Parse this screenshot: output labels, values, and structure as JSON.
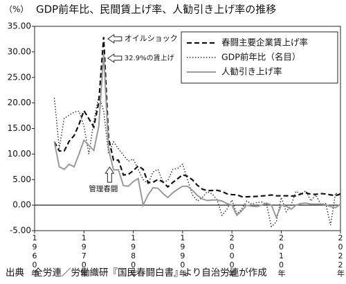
{
  "chart_data": {
    "type": "line",
    "title": "GDP前年比、民間賃上げ率、人勧引き上げ率の推移",
    "y_unit": "（%）",
    "source": "出典　全労連／労働織研『国民春闘白書』より自治労連が作成",
    "annotations": [
      "オイルショック",
      "32.9%の賃上げ",
      "管理春闘"
    ],
    "xlim": [
      1960,
      2022
    ],
    "xticks": [
      {
        "value": 1960,
        "label": "1960年"
      },
      {
        "value": 1970,
        "label": "1970年"
      },
      {
        "value": 1980,
        "label": "1980年"
      },
      {
        "value": 1990,
        "label": "1990年"
      },
      {
        "value": 2000,
        "label": "2000年"
      },
      {
        "value": 2010,
        "label": "2010年"
      },
      {
        "value": 2022,
        "label": "2022年"
      }
    ],
    "ylim": [
      -5,
      35
    ],
    "yticks": [
      {
        "value": -5,
        "label": "-5.00"
      },
      {
        "value": 0,
        "label": "0.00"
      },
      {
        "value": 5,
        "label": "5.00"
      },
      {
        "value": 10,
        "label": "10.00"
      },
      {
        "value": 15,
        "label": "15.00"
      },
      {
        "value": 20,
        "label": "20.00"
      },
      {
        "value": 25,
        "label": "25.00"
      },
      {
        "value": 30,
        "label": "30.00"
      },
      {
        "value": 35,
        "label": "35.00"
      }
    ],
    "x": [
      1964,
      1965,
      1966,
      1967,
      1968,
      1969,
      1970,
      1971,
      1972,
      1973,
      1974,
      1975,
      1976,
      1977,
      1978,
      1979,
      1980,
      1981,
      1982,
      1983,
      1984,
      1985,
      1986,
      1987,
      1988,
      1989,
      1990,
      1991,
      1992,
      1993,
      1994,
      1995,
      1996,
      1997,
      1998,
      1999,
      2000,
      2001,
      2002,
      2003,
      2004,
      2005,
      2006,
      2007,
      2008,
      2009,
      2010,
      2011,
      2012,
      2013,
      2014,
      2015,
      2016,
      2017,
      2018,
      2019,
      2020,
      2021,
      2022
    ],
    "series": [
      {
        "name": "春闘主要企業賃上げ率",
        "color": "#111111",
        "dash": "7 4",
        "width": 2.2,
        "values": [
          12.4,
          10.6,
          10.6,
          12.5,
          13.6,
          15.8,
          18.5,
          16.9,
          15.3,
          20.1,
          32.9,
          13.1,
          8.8,
          8.8,
          5.9,
          6.0,
          6.74,
          7.68,
          7.01,
          4.4,
          4.46,
          5.03,
          4.55,
          3.56,
          4.43,
          5.17,
          5.94,
          5.65,
          4.95,
          3.89,
          3.13,
          2.83,
          2.86,
          2.9,
          2.66,
          2.21,
          2.06,
          2.01,
          1.66,
          1.63,
          1.67,
          1.71,
          1.79,
          1.87,
          1.99,
          1.83,
          1.82,
          1.83,
          1.78,
          1.8,
          2.19,
          2.38,
          2.14,
          2.11,
          2.26,
          2.18,
          2.0,
          1.86,
          2.2
        ]
      },
      {
        "name": "GDP前年比（名目）",
        "color": "#333333",
        "dash": "1.5 2.5",
        "width": 1.5,
        "values": [
          21,
          11.1,
          17,
          17.6,
          18.2,
          18.4,
          15.5,
          10,
          16.4,
          21.3,
          18.5,
          10.1,
          12.4,
          11,
          9.8,
          8.6,
          9,
          7,
          5,
          4.2,
          6.5,
          7,
          4.5,
          4.8,
          7,
          7.2,
          8,
          5,
          2,
          0.8,
          1.5,
          2.6,
          2.2,
          1,
          -2,
          -0.8,
          1,
          -1.8,
          -0.7,
          0.8,
          0.2,
          0.5,
          0.6,
          0.2,
          -4.2,
          -3.3,
          1.5,
          -1.3,
          0,
          2.7,
          2.2,
          2.8,
          0.8,
          2,
          0.2,
          0.3,
          -3.9,
          2.4,
          1.6
        ]
      },
      {
        "name": "人勧引き上げ率",
        "color": "#999999",
        "dash": "",
        "width": 2,
        "values": [
          12.4,
          7.5,
          7,
          8,
          7.5,
          10,
          12.7,
          11.7,
          10.7,
          15.4,
          29.6,
          10.9,
          6.9,
          6.9,
          3.8,
          3.7,
          4.6,
          5.2,
          0,
          2,
          3.4,
          3.3,
          2.3,
          1.5,
          2.4,
          3.1,
          3.7,
          3.7,
          2.9,
          1.9,
          1.2,
          0.9,
          1,
          1,
          0.8,
          0.3,
          0,
          -2,
          -1.1,
          0,
          -0.2,
          -0.3,
          0,
          0.4,
          0,
          -2.4,
          0,
          -0.2,
          -0.8,
          0,
          0.3,
          0.4,
          0.2,
          0.2,
          0.2,
          0.1,
          -0.3,
          -0.5,
          0.2
        ]
      }
    ]
  }
}
